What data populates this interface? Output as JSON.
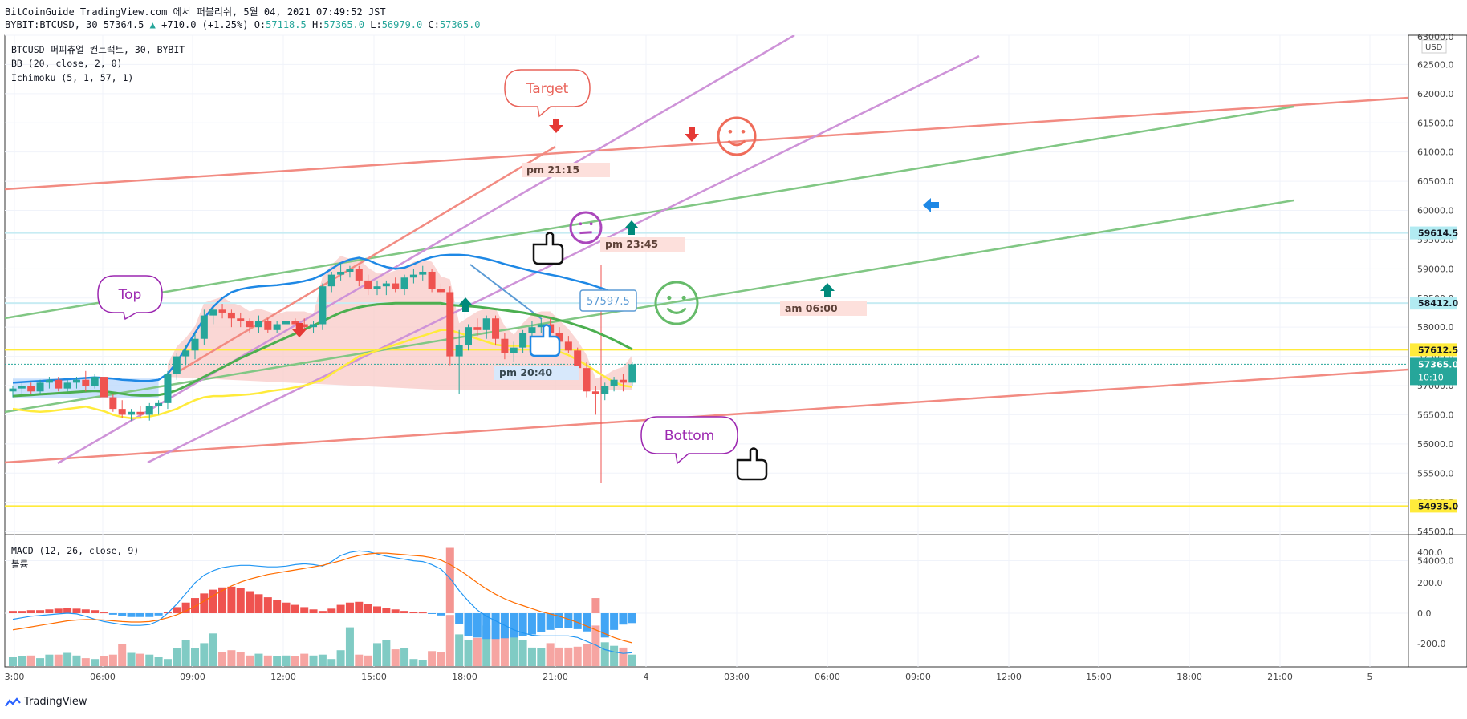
{
  "header": {
    "line1": "BitCoinGuide TradingView.com 에서 퍼블리쉬, 5월 04, 2021 07:49:52 JST",
    "line2_symbol": "BYBIT:BTCUSD, 30 57364.5",
    "line2_change": "+710.0 (+1.25%)",
    "open_label": "O:",
    "open": "57118.5",
    "high_label": "H:",
    "high": "57365.0",
    "low_label": "L:",
    "low": "56979.0",
    "close_label": "C:",
    "close": "57365.0"
  },
  "legend": {
    "main": "BTCUSD 퍼피츄얼 컨트랙트, 30, BYBIT",
    "bb": "BB (20, close, 2, 0)",
    "ichimoku": "Ichimoku (5, 1, 57, 1)",
    "macd": "MACD (12, 26, close, 9)",
    "volume": "볼륨"
  },
  "footer": {
    "brand": "TradingView"
  },
  "colors": {
    "up": "#26a69a",
    "down": "#ef5350",
    "bb_basis": "#4caf50",
    "bb_upper": "#1e88e5",
    "yellow": "#ffeb3b",
    "salmon_trend": "#f28b82",
    "violet": "#ce93d8",
    "macd": "#2196f3",
    "signal": "#ff6d00"
  },
  "chart_data": [
    {
      "type": "candlestick",
      "currency": "USD",
      "y_axis_ticks": [
        "63000.0",
        "62500.0",
        "62000.0",
        "61500.0",
        "61000.0",
        "60500.0",
        "60000.0",
        "59500.0",
        "59000.0",
        "58500.0",
        "58000.0",
        "57500.0",
        "57000.0",
        "56500.0",
        "56000.0",
        "55500.0",
        "55000.0",
        "54500.0",
        "54000.0"
      ],
      "ylim": [
        53700,
        63000
      ],
      "x_axis_ticks": [
        "3:00",
        "06:00",
        "09:00",
        "12:00",
        "15:00",
        "18:00",
        "21:00",
        "4",
        "03:00",
        "06:00",
        "09:00",
        "12:00",
        "15:00",
        "18:00",
        "21:00",
        "5"
      ],
      "price_labels": [
        {
          "value": 59614.5,
          "text": "59614.5",
          "color": "#b2ebf2",
          "line": "#c7ecf3"
        },
        {
          "value": 58412.0,
          "text": "58412.0",
          "color": "#b2ebf2",
          "line": "#c7ecf3"
        },
        {
          "value": 57612.5,
          "text": "57612.5",
          "color": "#ffeb3b",
          "line": "#ffeb3b"
        },
        {
          "value": 57365.0,
          "text": "57365.0",
          "sub": "10:10",
          "color": "#26a69a",
          "line": "#26a69a"
        },
        {
          "value": 54935.0,
          "text": "54935.0",
          "color": "#ffeb3b",
          "line": "#ffeb3b"
        }
      ],
      "candles": [
        [
          56900,
          57000,
          56800,
          56950
        ],
        [
          56950,
          57050,
          56850,
          57000
        ],
        [
          57000,
          57050,
          56850,
          56900
        ],
        [
          56900,
          57100,
          56850,
          57050
        ],
        [
          57050,
          57150,
          56950,
          57100
        ],
        [
          57100,
          57150,
          56900,
          56950
        ],
        [
          56950,
          57100,
          56900,
          57050
        ],
        [
          57050,
          57150,
          56950,
          57100
        ],
        [
          57100,
          57250,
          56900,
          57000
        ],
        [
          57000,
          57200,
          56950,
          57150
        ],
        [
          57150,
          57200,
          56750,
          56800
        ],
        [
          56800,
          56850,
          56550,
          56600
        ],
        [
          56600,
          56750,
          56450,
          56500
        ],
        [
          56500,
          56600,
          56400,
          56550
        ],
        [
          56550,
          56650,
          56450,
          56500
        ],
        [
          56500,
          56700,
          56400,
          56650
        ],
        [
          56650,
          56750,
          56500,
          56700
        ],
        [
          56700,
          57250,
          56600,
          57200
        ],
        [
          57200,
          57550,
          57100,
          57500
        ],
        [
          57500,
          57700,
          57350,
          57600
        ],
        [
          57600,
          57900,
          57450,
          57800
        ],
        [
          57800,
          58300,
          57700,
          58200
        ],
        [
          58200,
          58350,
          58050,
          58300
        ],
        [
          58300,
          58400,
          58150,
          58250
        ],
        [
          58250,
          58300,
          58000,
          58150
        ],
        [
          58150,
          58250,
          58000,
          58100
        ],
        [
          58100,
          58150,
          57900,
          58000
        ],
        [
          58000,
          58200,
          57900,
          58100
        ],
        [
          58100,
          58150,
          57900,
          57950
        ],
        [
          57950,
          58100,
          57900,
          58050
        ],
        [
          58050,
          58150,
          57950,
          58100
        ],
        [
          58100,
          58150,
          57950,
          58050
        ],
        [
          58050,
          58150,
          57950,
          58000
        ],
        [
          58000,
          58100,
          57900,
          58050
        ],
        [
          58050,
          58750,
          57950,
          58700
        ],
        [
          58700,
          58950,
          58600,
          58900
        ],
        [
          58900,
          59100,
          58800,
          58950
        ],
        [
          58950,
          59050,
          58850,
          59000
        ],
        [
          59000,
          59050,
          58700,
          58800
        ],
        [
          58800,
          58900,
          58550,
          58650
        ],
        [
          58650,
          58800,
          58550,
          58700
        ],
        [
          58700,
          58800,
          58550,
          58750
        ],
        [
          58750,
          58850,
          58600,
          58650
        ],
        [
          58650,
          58900,
          58550,
          58850
        ],
        [
          58850,
          59000,
          58750,
          58900
        ],
        [
          58900,
          59050,
          58800,
          58950
        ],
        [
          58950,
          59000,
          58600,
          58650
        ],
        [
          58650,
          58750,
          58550,
          58600
        ],
        [
          58600,
          58700,
          57350,
          57500
        ],
        [
          57500,
          57950,
          56850,
          57700
        ],
        [
          57700,
          58050,
          57600,
          58000
        ],
        [
          58000,
          58150,
          57850,
          57950
        ],
        [
          57950,
          58200,
          57800,
          58150
        ],
        [
          58150,
          58200,
          57700,
          57800
        ],
        [
          57800,
          57900,
          57450,
          57550
        ],
        [
          57550,
          57750,
          57400,
          57650
        ],
        [
          57650,
          57950,
          57550,
          57900
        ],
        [
          57900,
          58100,
          57750,
          58000
        ],
        [
          58000,
          58150,
          57900,
          58050
        ],
        [
          58050,
          58150,
          57850,
          57900
        ],
        [
          57900,
          58000,
          57650,
          57750
        ],
        [
          57750,
          57850,
          57550,
          57600
        ],
        [
          57600,
          57650,
          57250,
          57300
        ],
        [
          57300,
          57400,
          56800,
          56900
        ],
        [
          56900,
          57000,
          56500,
          56850
        ],
        [
          56850,
          57050,
          56750,
          57000
        ],
        [
          57000,
          57150,
          56900,
          57100
        ],
        [
          57100,
          57200,
          56900,
          57050
        ],
        [
          57050,
          57400,
          57000,
          57365
        ]
      ],
      "bb_upper": [
        57050,
        57060,
        57070,
        57080,
        57090,
        57100,
        57110,
        57120,
        57130,
        57140,
        57130,
        57120,
        57100,
        57090,
        57080,
        57080,
        57100,
        57200,
        57400,
        57650,
        57900,
        58150,
        58350,
        58500,
        58600,
        58650,
        58680,
        58700,
        58710,
        58720,
        58740,
        58760,
        58790,
        58830,
        58900,
        59000,
        59100,
        59160,
        59190,
        59150,
        59080,
        59030,
        59000,
        59020,
        59080,
        59150,
        59200,
        59230,
        59240,
        59240,
        59230,
        59200,
        59170,
        59130,
        59080,
        59040,
        59000,
        58960,
        58930,
        58900,
        58870,
        58830,
        58790,
        58750,
        58700,
        58650,
        58580,
        58500,
        58400
      ],
      "bb_basis": [
        56820,
        56830,
        56840,
        56850,
        56860,
        56870,
        56880,
        56890,
        56900,
        56910,
        56900,
        56880,
        56860,
        56840,
        56830,
        56830,
        56840,
        56870,
        56920,
        56990,
        57070,
        57150,
        57230,
        57310,
        57390,
        57470,
        57540,
        57610,
        57680,
        57750,
        57820,
        57890,
        57960,
        58030,
        58100,
        58180,
        58250,
        58300,
        58340,
        58370,
        58390,
        58400,
        58410,
        58410,
        58410,
        58410,
        58410,
        58410,
        58380,
        58370,
        58360,
        58350,
        58330,
        58310,
        58290,
        58270,
        58250,
        58220,
        58190,
        58160,
        58120,
        58080,
        58030,
        57980,
        57920,
        57850,
        57780,
        57700,
        57620
      ],
      "yellow_line": [
        56600,
        56580,
        56560,
        56550,
        56560,
        56580,
        56600,
        56620,
        56640,
        56600,
        56560,
        56500,
        56460,
        56440,
        56450,
        56470,
        56500,
        56550,
        56600,
        56680,
        56750,
        56800,
        56820,
        56820,
        56830,
        56840,
        56850,
        56870,
        56900,
        56920,
        56940,
        56970,
        57000,
        57050,
        57100,
        57200,
        57300,
        57400,
        57500,
        57550,
        57600,
        57650,
        57700,
        57750,
        57800,
        57850,
        57900,
        57950,
        57950,
        57900,
        57850,
        57800,
        57750,
        57700,
        57680,
        57680,
        57680,
        57670,
        57650,
        57620,
        57580,
        57520,
        57440,
        57350,
        57250,
        57150,
        57060,
        57000,
        56980
      ]
    },
    {
      "type": "bar",
      "name": "MACD",
      "y_axis_ticks": [
        "400.0",
        "200.0",
        "0.0",
        "-200.0"
      ],
      "ylim": [
        -350,
        450
      ],
      "histogram": [
        15,
        15,
        20,
        20,
        25,
        30,
        35,
        30,
        25,
        20,
        5,
        -10,
        -20,
        -25,
        -25,
        -25,
        -15,
        10,
        40,
        70,
        100,
        130,
        155,
        170,
        175,
        165,
        145,
        125,
        105,
        85,
        70,
        55,
        40,
        25,
        15,
        30,
        55,
        70,
        75,
        60,
        45,
        35,
        25,
        15,
        10,
        5,
        -5,
        -15,
        430,
        -70,
        -150,
        -160,
        -170,
        -170,
        -165,
        -160,
        -150,
        -140,
        -125,
        -110,
        -100,
        -95,
        -105,
        -120,
        100,
        -160,
        -110,
        -75,
        -65
      ],
      "macd_line": [
        -40,
        -30,
        -20,
        -15,
        -10,
        -5,
        0,
        -5,
        -20,
        -40,
        -55,
        -65,
        -75,
        -80,
        -80,
        -75,
        -50,
        0,
        60,
        130,
        200,
        250,
        280,
        300,
        310,
        315,
        315,
        310,
        305,
        305,
        310,
        320,
        325,
        320,
        310,
        340,
        380,
        400,
        410,
        405,
        390,
        375,
        365,
        355,
        345,
        340,
        320,
        290,
        230,
        150,
        80,
        20,
        -20,
        -50,
        -80,
        -110,
        -130,
        -145,
        -150,
        -150,
        -150,
        -150,
        -160,
        -185,
        -210,
        -240,
        -255,
        -265,
        -260
      ],
      "signal_line": [
        -110,
        -100,
        -90,
        -80,
        -70,
        -60,
        -50,
        -45,
        -42,
        -42,
        -45,
        -50,
        -55,
        -58,
        -58,
        -55,
        -45,
        -30,
        -10,
        15,
        45,
        80,
        115,
        150,
        180,
        205,
        225,
        240,
        255,
        265,
        275,
        285,
        295,
        305,
        315,
        330,
        345,
        365,
        380,
        390,
        395,
        395,
        390,
        385,
        380,
        375,
        365,
        350,
        320,
        285,
        245,
        200,
        160,
        125,
        95,
        70,
        50,
        30,
        10,
        -5,
        -20,
        -40,
        -60,
        -85,
        -110,
        -135,
        -160,
        -180,
        -195
      ],
      "volume": [
        100,
        110,
        120,
        90,
        130,
        130,
        150,
        120,
        90,
        80,
        110,
        130,
        250,
        150,
        140,
        130,
        100,
        80,
        200,
        300,
        200,
        260,
        370,
        160,
        180,
        160,
        120,
        140,
        120,
        110,
        120,
        110,
        140,
        120,
        130,
        80,
        180,
        440,
        130,
        120,
        260,
        300,
        190,
        200,
        80,
        70,
        170,
        160,
        580,
        360,
        300,
        320,
        460,
        430,
        420,
        480,
        300,
        210,
        200,
        260,
        210,
        210,
        220,
        250,
        460,
        270,
        230,
        210,
        130
      ]
    }
  ],
  "annotations": {
    "target": "Target",
    "top": "Top",
    "bottom": "Bottom",
    "t1": "pm 21:15",
    "t2": "pm 23:45",
    "t3": "pm 20:40",
    "t4": "am 06:00",
    "price_box": "57597.5"
  }
}
